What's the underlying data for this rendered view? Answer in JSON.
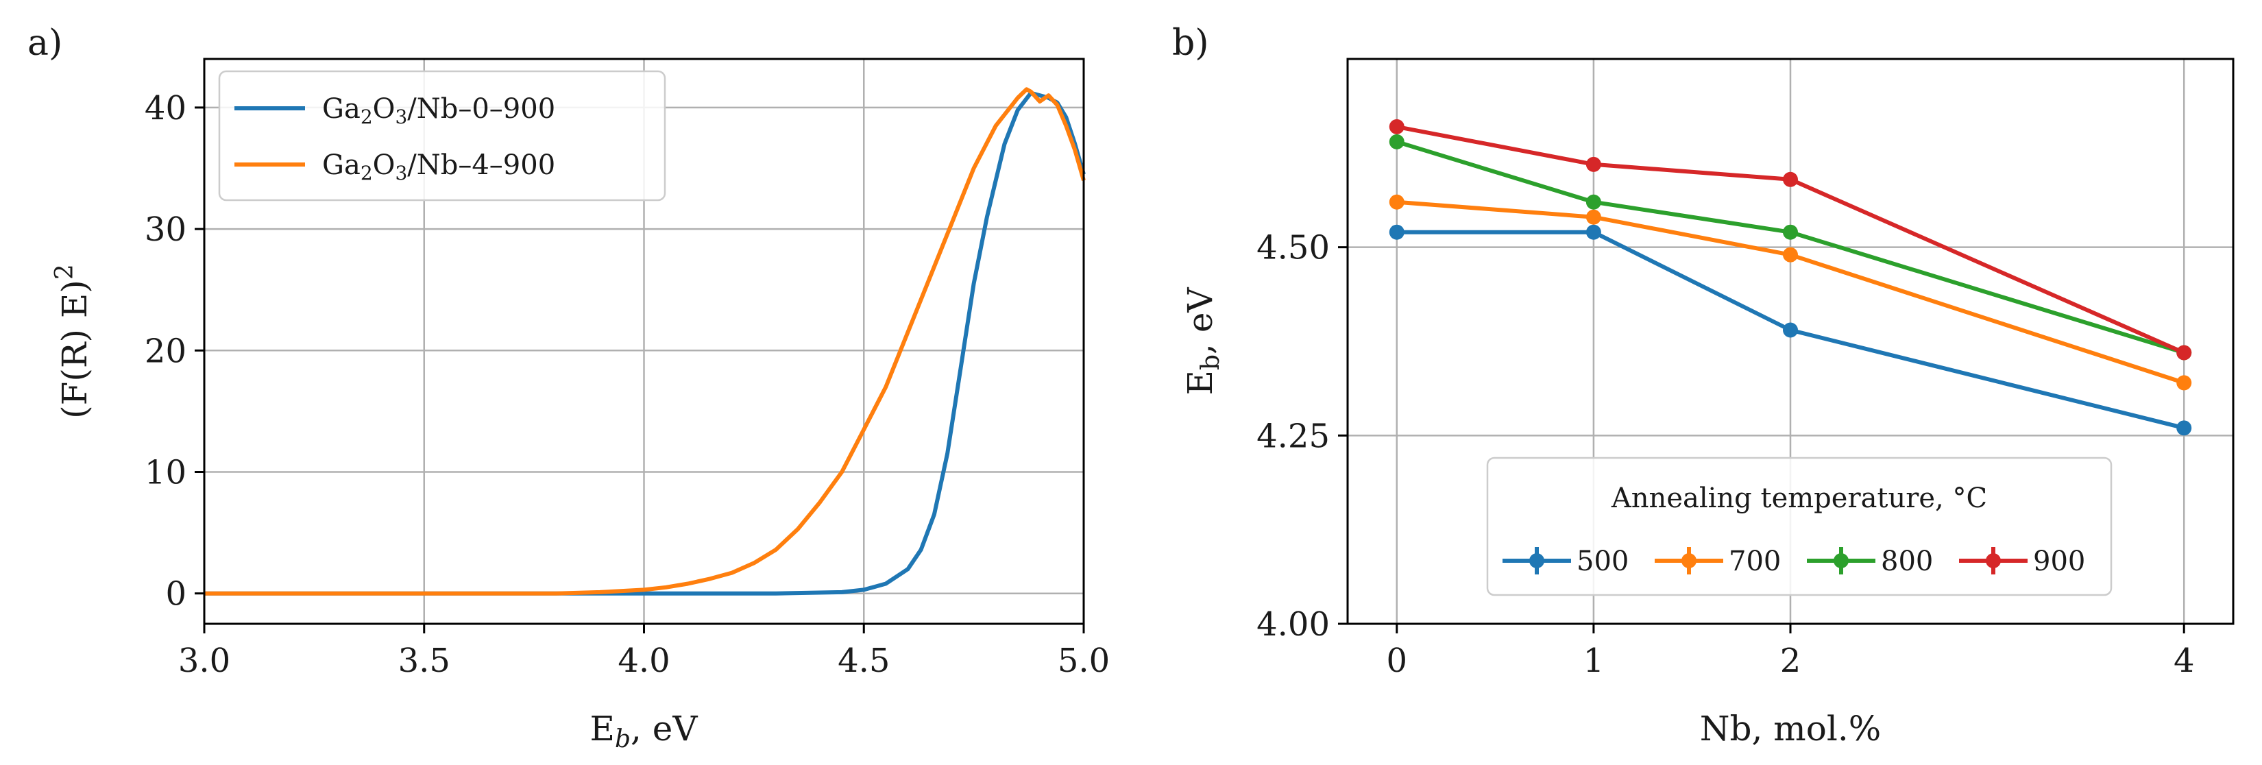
{
  "colors": {
    "blue": "#1f77b4",
    "orange": "#ff7f0e",
    "green": "#2ca02c",
    "red": "#d62728",
    "grid": "#b0b0b0"
  },
  "panels": {
    "a": {
      "label": "a)"
    },
    "b": {
      "label": "b)"
    }
  },
  "chart_data": [
    {
      "id": "a",
      "type": "line",
      "xlabel_main": "E",
      "xlabel_sub": "b",
      "xlabel_rest": ", eV",
      "ylabel_main": "(F(R) E)",
      "ylabel_sup": "2",
      "xlim": [
        3.0,
        5.0
      ],
      "ylim": [
        -2.5,
        44
      ],
      "xticks": [
        "3.0",
        "3.5",
        "4.0",
        "4.5",
        "5.0"
      ],
      "xtick_values": [
        3.0,
        3.5,
        4.0,
        4.5,
        5.0
      ],
      "yticks": [
        "0",
        "10",
        "20",
        "30",
        "40"
      ],
      "ytick_values": [
        0,
        10,
        20,
        30,
        40
      ],
      "legend_location": "upper-left",
      "series": [
        {
          "name_prefix": "Ga",
          "sub1": "2",
          "mid": "O",
          "sub2": "3",
          "name_suffix": "/Nb–0–900",
          "color": "blue",
          "x": [
            3.0,
            4.0,
            4.3,
            4.45,
            4.5,
            4.55,
            4.6,
            4.63,
            4.66,
            4.69,
            4.72,
            4.75,
            4.78,
            4.8,
            4.82,
            4.85,
            4.88,
            4.9,
            4.92,
            4.94,
            4.96,
            4.98,
            5.0
          ],
          "y": [
            0,
            0,
            0,
            0.1,
            0.3,
            0.8,
            2.0,
            3.6,
            6.5,
            11.5,
            18.5,
            25.5,
            31.0,
            34.0,
            37.0,
            39.8,
            41.2,
            41.0,
            40.8,
            40.4,
            39.2,
            37.0,
            34.5
          ]
        },
        {
          "name_prefix": "Ga",
          "sub1": "2",
          "mid": "O",
          "sub2": "3",
          "name_suffix": "/Nb–4–900",
          "color": "orange",
          "x": [
            3.0,
            3.8,
            3.9,
            4.0,
            4.05,
            4.1,
            4.15,
            4.2,
            4.25,
            4.3,
            4.35,
            4.4,
            4.45,
            4.5,
            4.55,
            4.6,
            4.65,
            4.7,
            4.75,
            4.8,
            4.85,
            4.87,
            4.88,
            4.9,
            4.92,
            4.94,
            4.96,
            4.98,
            5.0
          ],
          "y": [
            0,
            0,
            0.1,
            0.3,
            0.5,
            0.8,
            1.2,
            1.7,
            2.5,
            3.6,
            5.3,
            7.5,
            10.0,
            13.5,
            17.0,
            21.5,
            26.0,
            30.5,
            35.0,
            38.5,
            40.8,
            41.5,
            41.3,
            40.5,
            41.0,
            40.2,
            38.5,
            36.5,
            34.0
          ]
        }
      ]
    },
    {
      "id": "b",
      "type": "line",
      "xlabel": "Nb, mol.%",
      "ylabel_main": "E",
      "ylabel_sub": "b",
      "ylabel_rest": ", eV",
      "xlim": [
        -0.25,
        4.25
      ],
      "ylim": [
        4.0,
        4.75
      ],
      "xticks": [
        "0",
        "1",
        "2",
        "4"
      ],
      "xtick_values": [
        0,
        1,
        2,
        4
      ],
      "yticks": [
        "4.00",
        "4.25",
        "4.50"
      ],
      "ytick_values": [
        4.0,
        4.25,
        4.5
      ],
      "legend_title": "Annealing temperature, °C",
      "legend_location": "lower-center",
      "categories": [
        0,
        1,
        2,
        4
      ],
      "series": [
        {
          "name": "500",
          "color": "blue",
          "values": [
            4.52,
            4.52,
            4.39,
            4.26
          ]
        },
        {
          "name": "700",
          "color": "orange",
          "values": [
            4.56,
            4.54,
            4.49,
            4.32
          ]
        },
        {
          "name": "800",
          "color": "green",
          "values": [
            4.64,
            4.56,
            4.52,
            4.36
          ]
        },
        {
          "name": "900",
          "color": "red",
          "values": [
            4.66,
            4.61,
            4.59,
            4.36
          ]
        }
      ]
    }
  ]
}
